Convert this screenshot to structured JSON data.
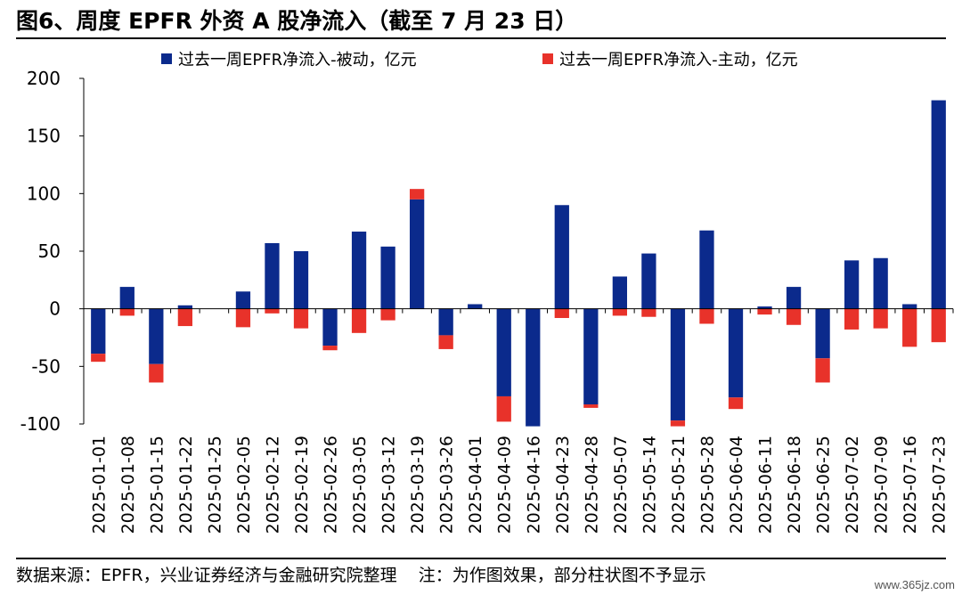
{
  "header": {
    "title": "图6、周度 EPFR 外资 A 股净流入（截至 7 月 23 日）"
  },
  "footer": {
    "source": "数据来源：EPFR，兴业证券经济与金融研究院整理",
    "note": "注：为作图效果，部分柱状图不予显示"
  },
  "watermark": "www.365jz.com",
  "colors": {
    "passive": "#0b2a8c",
    "active": "#e8322a"
  },
  "chart_data": {
    "type": "bar",
    "stacked": true,
    "categories": [
      "2025-01-01",
      "2025-01-08",
      "2025-01-15",
      "2025-01-22",
      "2025-01-25",
      "2025-02-05",
      "2025-02-12",
      "2025-02-19",
      "2025-02-26",
      "2025-03-05",
      "2025-03-12",
      "2025-03-19",
      "2025-03-26",
      "2025-04-01",
      "2025-04-09",
      "2025-04-16",
      "2025-04-23",
      "2025-04-28",
      "2025-05-07",
      "2025-05-14",
      "2025-05-21",
      "2025-05-28",
      "2025-06-04",
      "2025-06-11",
      "2025-06-18",
      "2025-06-25",
      "2025-07-02",
      "2025-07-09",
      "2025-07-16",
      "2025-07-23"
    ],
    "series": [
      {
        "name": "过去一周EPFR净流入-被动，亿元",
        "color": "#0b2a8c",
        "values": [
          -39,
          19,
          -48,
          3,
          0,
          15,
          57,
          50,
          -32,
          67,
          54,
          95,
          -23,
          4,
          -76,
          -102,
          90,
          -83,
          28,
          48,
          -97,
          68,
          -77,
          2,
          19,
          -43,
          42,
          44,
          4,
          181
        ]
      },
      {
        "name": "过去一周EPFR净流入-主动，亿元",
        "color": "#e8322a",
        "values": [
          -7,
          -6,
          -16,
          -15,
          0,
          -16,
          -4,
          -17,
          -4,
          -21,
          -10,
          9,
          -12,
          0,
          -22,
          0,
          -8,
          -3,
          -6,
          -7,
          -5,
          -13,
          -10,
          -5,
          -14,
          -21,
          -18,
          -17,
          -33,
          -29
        ]
      }
    ],
    "yticks": [
      -100,
      -50,
      0,
      50,
      100,
      150,
      200
    ],
    "ylim": [
      -100,
      200
    ],
    "grid": false,
    "legend_position": "top"
  }
}
